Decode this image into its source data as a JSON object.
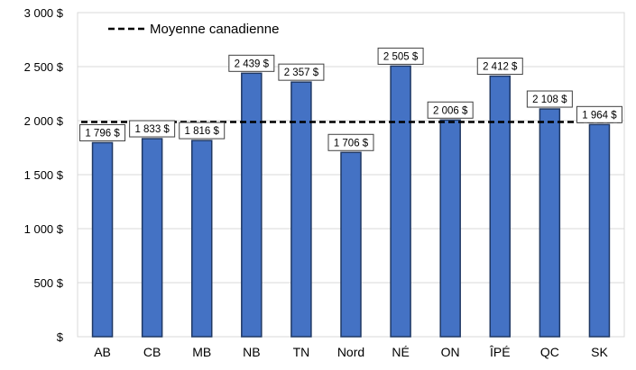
{
  "chart_data": {
    "type": "bar",
    "title": "",
    "xlabel": "",
    "ylabel": "",
    "ylim": [
      0,
      3000
    ],
    "yticks": [
      0,
      500,
      1000,
      1500,
      2000,
      2500,
      3000
    ],
    "ytick_labels": [
      "$",
      "500 $",
      "1 000 $",
      "1 500 $",
      "2 000 $",
      "2 500 $",
      "3 000 $"
    ],
    "grid": "horizontal",
    "legend_position": "top-left",
    "categories": [
      "AB",
      "CB",
      "MB",
      "NB",
      "TN",
      "Nord",
      "NÉ",
      "ON",
      "ÎPÉ",
      "QC",
      "SK"
    ],
    "series": [
      {
        "values": [
          1796,
          1833,
          1816,
          2439,
          2357,
          1706,
          2505,
          2006,
          2412,
          2108,
          1964
        ],
        "value_labels": [
          "1 796 $",
          "1 833 $",
          "1 816 $",
          "2 439 $",
          "2 357 $",
          "1 706 $",
          "2 505 $",
          "2 006 $",
          "2 412 $",
          "2 108 $",
          "1 964 $"
        ],
        "color": "#4472C4",
        "edge_color": "#1F3864"
      }
    ],
    "reference_line": {
      "name": "Moyenne canadienne",
      "value": 1987,
      "style": "dashed",
      "color": "#000000"
    }
  }
}
